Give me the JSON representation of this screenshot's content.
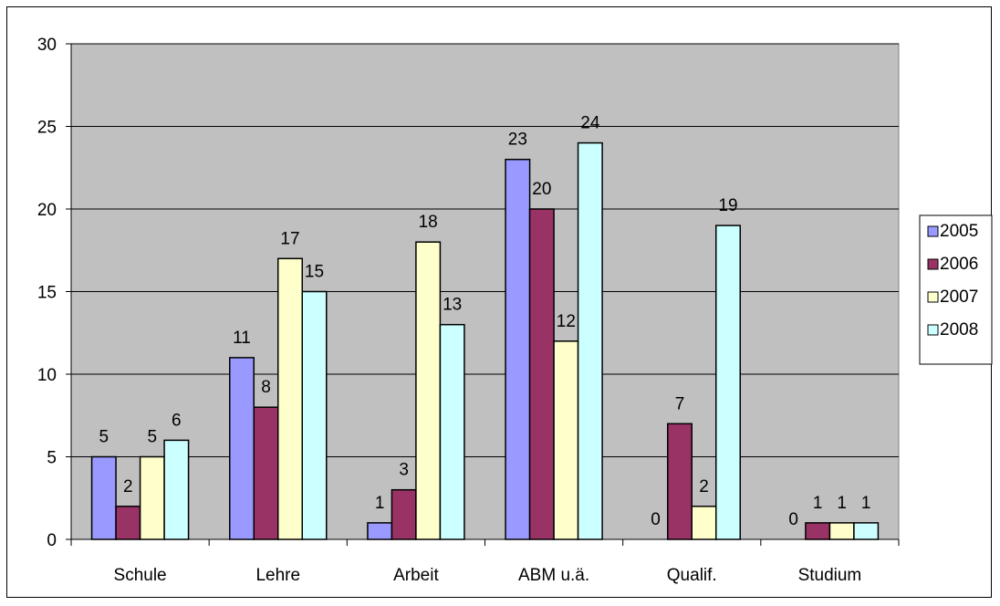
{
  "chart_data": {
    "type": "bar",
    "categories": [
      "Schule",
      "Lehre",
      "Arbeit",
      "ABM u.ä.",
      "Qualif.",
      "Studium"
    ],
    "series": [
      {
        "name": "2005",
        "color": "#9999ff",
        "values": [
          5,
          11,
          1,
          23,
          0,
          0
        ]
      },
      {
        "name": "2006",
        "color": "#993366",
        "values": [
          2,
          8,
          3,
          20,
          7,
          1
        ]
      },
      {
        "name": "2007",
        "color": "#ffffcc",
        "values": [
          5,
          17,
          18,
          12,
          2,
          1
        ]
      },
      {
        "name": "2008",
        "color": "#ccffff",
        "values": [
          6,
          15,
          13,
          24,
          19,
          1
        ]
      }
    ],
    "ylim": [
      0,
      30
    ],
    "yticks": [
      "0",
      "5",
      "10",
      "15",
      "20",
      "25",
      "30"
    ],
    "plot_background": "#c0c0c0",
    "grid": true,
    "legend_position": "right",
    "data_labels": true
  }
}
